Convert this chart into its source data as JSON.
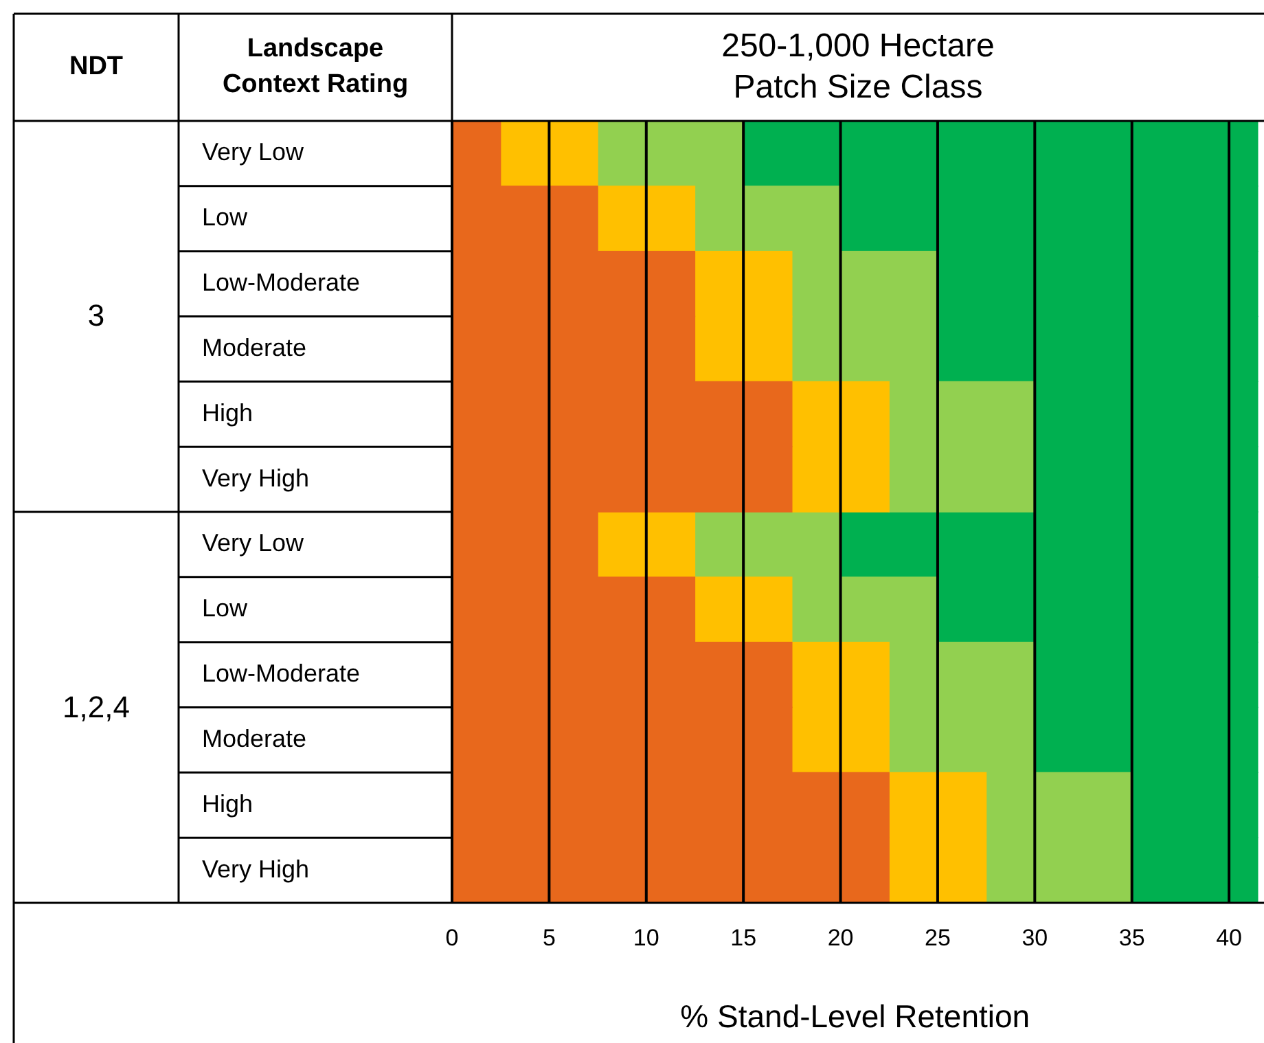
{
  "chart_data": {
    "type": "bar",
    "orientation": "horizontal",
    "stacked": true,
    "title": "250-1,000 Hectare Patch Size Class",
    "ylabel": "Landscape Context Rating",
    "xlabel": "% Stand-Level Retention",
    "annotations": [
      "NDT",
      "3",
      "1,2,4"
    ],
    "categories": [
      "Very Low",
      "Low",
      "Low-Moderate",
      "Moderate",
      "High",
      "Very High",
      "Very Low",
      "Low",
      "Low-Moderate",
      "Moderate",
      "High",
      "Very High"
    ],
    "series": [
      {
        "color": "#e8681c",
        "values": [
          2.5,
          7.5,
          12.5,
          12.5,
          17.5,
          17.5,
          7.5,
          12.5,
          17.5,
          17.5,
          22.5,
          22.5
        ]
      },
      {
        "color": "#ffc000",
        "values": [
          5,
          5,
          5,
          5,
          5,
          5,
          5,
          5,
          5,
          5,
          5,
          5
        ]
      },
      {
        "color": "#92d050",
        "values": [
          7.5,
          7.5,
          7.5,
          7.5,
          7.5,
          7.5,
          7.5,
          7.5,
          7.5,
          7.5,
          7.5,
          7.5
        ]
      },
      {
        "color": "#00b050",
        "values": [
          26.5,
          21.5,
          16.5,
          16.5,
          11.5,
          11.5,
          21.5,
          16.5,
          11.5,
          11.5,
          6.5,
          6.5
        ]
      }
    ],
    "xlim": [
      0,
      41.5
    ],
    "xticks": [
      0,
      5,
      10,
      15,
      20,
      25,
      30,
      35,
      40
    ],
    "grid": "x",
    "legend": false
  }
}
